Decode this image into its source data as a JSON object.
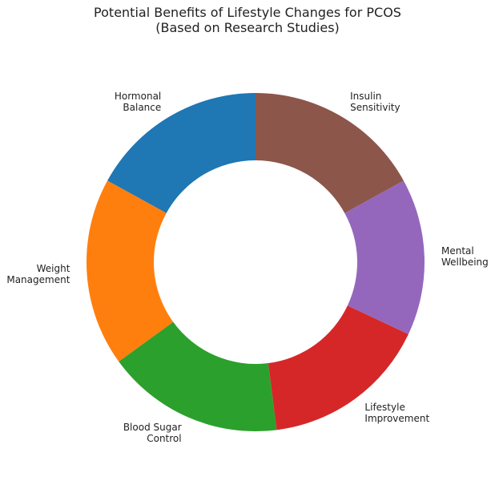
{
  "chart_data": {
    "type": "pie",
    "title": "Potential Benefits of Lifestyle Changes for PCOS\n(Based on Research Studies)",
    "categories": [
      "Hormonal\nBalance",
      "Weight\nManagement",
      "Blood Sugar\nControl",
      "Lifestyle\nImprovement",
      "Mental\nWellbeing",
      "Insulin\nSensitivity"
    ],
    "values": [
      17,
      18,
      17,
      16,
      15,
      17
    ],
    "colors": [
      "#1f77b4",
      "#ff7f0e",
      "#2ca02c",
      "#d62728",
      "#9467bd",
      "#8c564b"
    ]
  }
}
